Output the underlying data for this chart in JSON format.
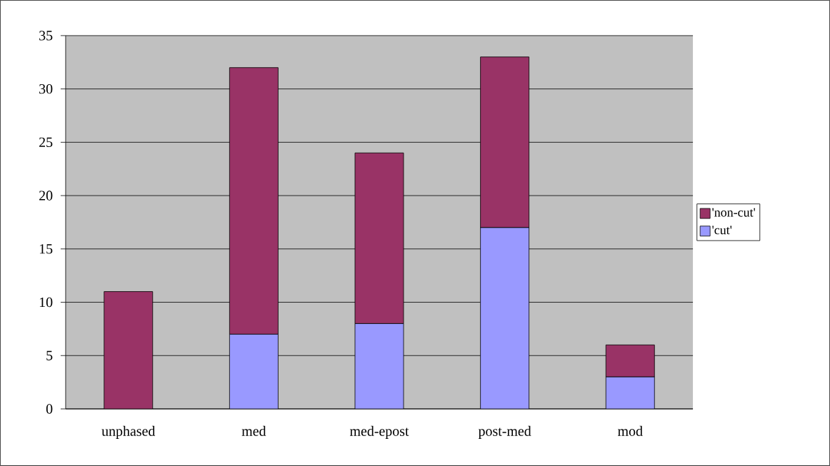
{
  "chart_data": {
    "type": "bar",
    "stacked": true,
    "categories": [
      "unphased",
      "med",
      "med-epost",
      "post-med",
      "mod"
    ],
    "series": [
      {
        "name": "'cut'",
        "color": "#9999ff",
        "values": [
          0,
          7,
          8,
          17,
          3
        ]
      },
      {
        "name": "'non-cut'",
        "color": "#993366",
        "values": [
          11,
          25,
          16,
          16,
          3
        ]
      }
    ],
    "ylim": [
      0,
      35
    ],
    "yticks": [
      0,
      5,
      10,
      15,
      20,
      25,
      30,
      35
    ],
    "grid": "y",
    "legend": "right"
  }
}
